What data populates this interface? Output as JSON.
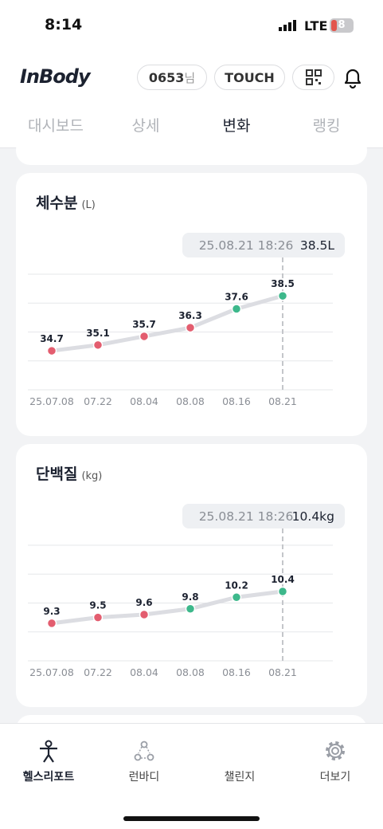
{
  "status_bar": {
    "time": "8:14",
    "network": "LTE",
    "battery": "8"
  },
  "header": {
    "logo": "InBody",
    "user_id": "0653",
    "user_suffix": "님",
    "touch_button": "TOUCH"
  },
  "tabs": {
    "items": [
      "대시보드",
      "상세",
      "변화",
      "랭킹"
    ],
    "active": 2
  },
  "chart_data": [
    {
      "type": "line",
      "title": "체수분",
      "unit": "(L)",
      "tooltip_date": "25.08.21 18:26",
      "tooltip_value": "38.5L",
      "categories": [
        "25.07.08",
        "07.22",
        "08.04",
        "08.08",
        "08.16",
        "08.21"
      ],
      "values": [
        34.7,
        35.1,
        35.7,
        36.3,
        37.6,
        38.5
      ],
      "point_colors": [
        "#e35d6f",
        "#e35d6f",
        "#e35d6f",
        "#e35d6f",
        "#3db88b",
        "#3db88b"
      ],
      "line_color": "#dcdde2",
      "ylim": [
        32,
        40
      ],
      "yticks": [
        32,
        34,
        36,
        38,
        40
      ],
      "grid": true
    },
    {
      "type": "line",
      "title": "단백질",
      "unit": "(kg)",
      "tooltip_date": "25.08.21 18:26",
      "tooltip_value": "10.4kg",
      "categories": [
        "25.07.08",
        "07.22",
        "08.04",
        "08.08",
        "08.16",
        "08.21"
      ],
      "values": [
        9.3,
        9.5,
        9.6,
        9.8,
        10.2,
        10.4
      ],
      "point_colors": [
        "#e35d6f",
        "#e35d6f",
        "#e35d6f",
        "#3db88b",
        "#3db88b",
        "#3db88b"
      ],
      "line_color": "#dcdde2",
      "ylim": [
        8,
        12
      ],
      "yticks": [
        8,
        9,
        10,
        11,
        12
      ],
      "grid": true
    }
  ],
  "nav": {
    "items": [
      "헬스리포트",
      "런바디",
      "챌린지",
      "더보기"
    ],
    "active": 0
  }
}
